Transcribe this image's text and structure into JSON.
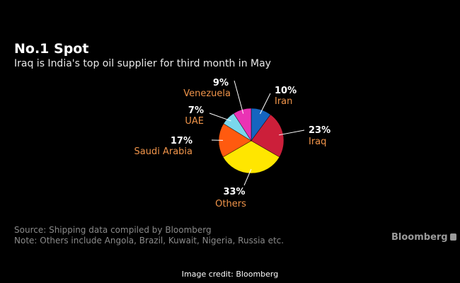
{
  "header": {
    "title": "No.1 Spot",
    "subtitle": "Iraq is India's top oil supplier for third month in May"
  },
  "footer": {
    "source": "Source: Shipping data compiled by Bloomberg",
    "note": "Note: Others include Angola, Brazil, Kuwait, Nigeria, Russia etc.",
    "brand": "Bloomberg",
    "credit": "Image credit: Bloomberg"
  },
  "colors": {
    "background": "#000000",
    "label_name": "#f0944a",
    "label_value": "#ffffff",
    "leader_line": "#ffffff"
  },
  "chart_data": {
    "type": "pie",
    "title": "No.1 Spot",
    "subtitle": "Iraq is India's top oil supplier for third month in May",
    "unit": "%",
    "slices": [
      {
        "label": "Iran",
        "value": 10,
        "display": "10%",
        "color": "#1565c0"
      },
      {
        "label": "Iraq",
        "value": 23,
        "display": "23%",
        "color": "#cc1f3a"
      },
      {
        "label": "Others",
        "value": 33,
        "display": "33%",
        "color": "#ffe600"
      },
      {
        "label": "Saudi Arabia",
        "value": 17,
        "display": "17%",
        "color": "#ff5a0f"
      },
      {
        "label": "UAE",
        "value": 7,
        "display": "7%",
        "color": "#7ad7ec"
      },
      {
        "label": "Venezuela",
        "value": 9,
        "display": "9%",
        "color": "#ea33b4"
      }
    ]
  }
}
